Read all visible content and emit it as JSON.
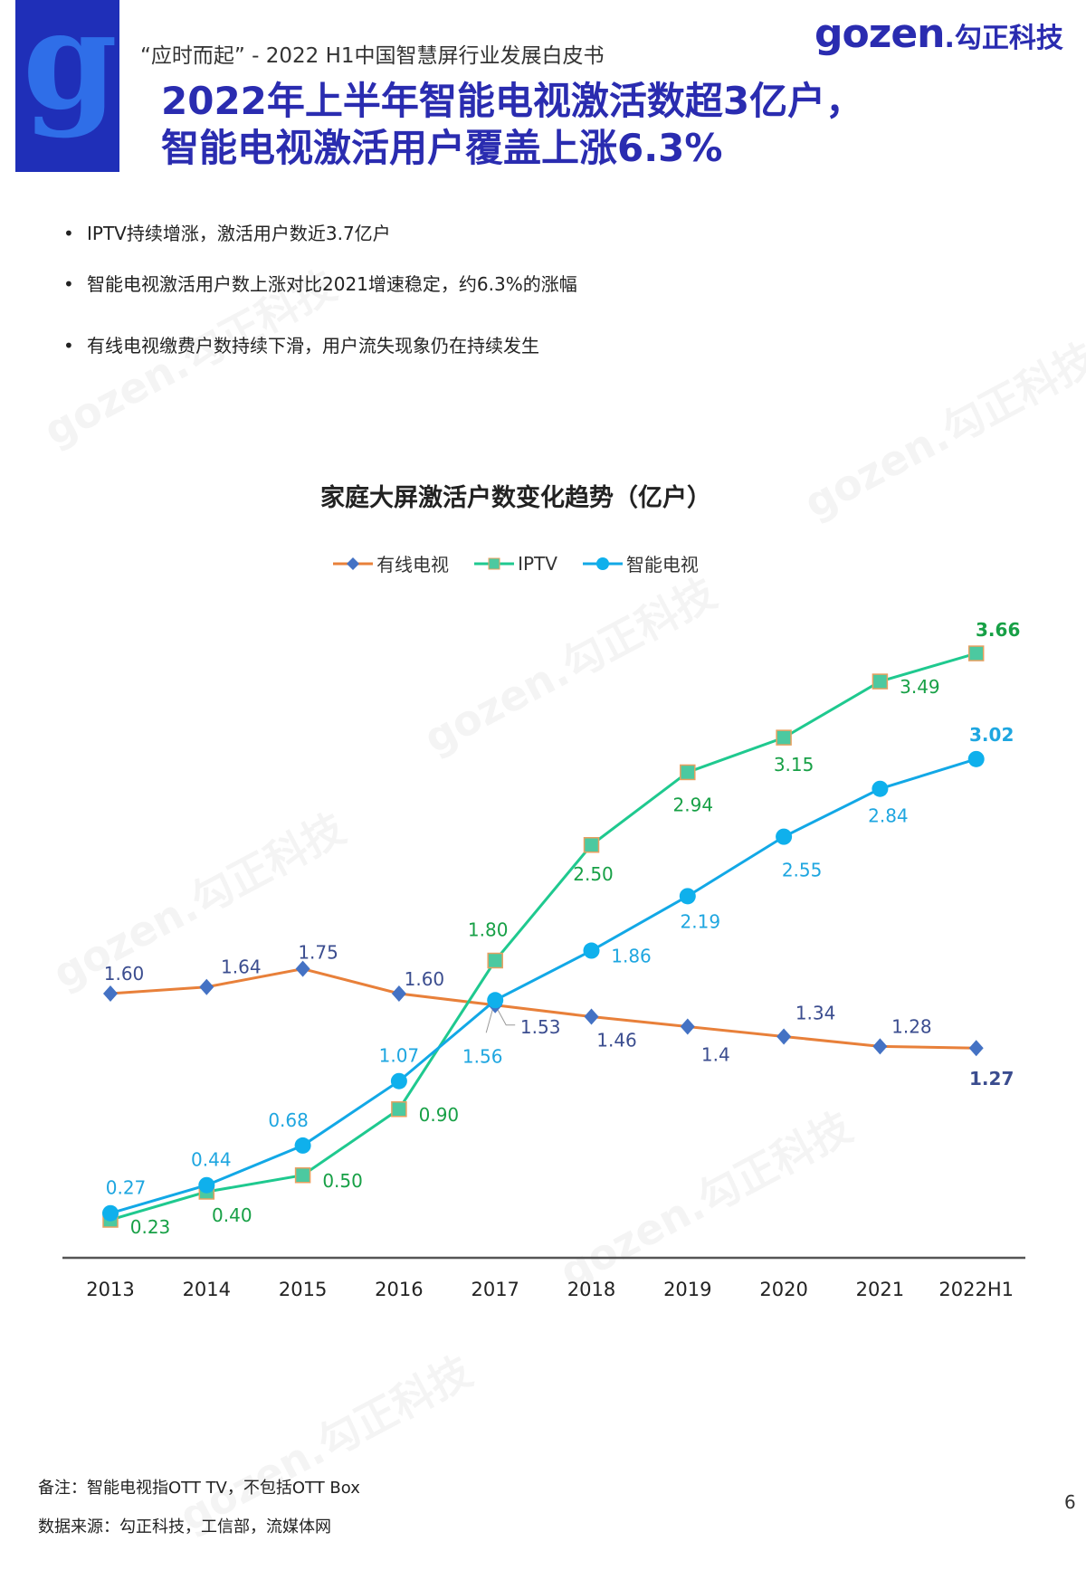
{
  "header": {
    "subtitle": "“应时而起” - 2022 H1中国智慧屏行业发展白皮书",
    "title_line1": "2022年上半年智能电视激活数超3亿户，",
    "title_line2": "智能电视激活用户覆盖上涨6.3%",
    "logo_text": "gozen",
    "logo_cn": ".勾正科技",
    "brand_color": "#2a2cb0"
  },
  "bullets": [
    "IPTV持续增涨，激活用户数近3.7亿户",
    "智能电视激活用户数上涨对比2021增速稳定，约6.3%的涨幅",
    "有线电视缴费户数持续下滑，用户流失现象仍在持续发生"
  ],
  "watermark": "gozen.勾正科技",
  "chart_data": {
    "type": "line",
    "title": "家庭大屏激活户数变化趋势（亿户）",
    "categories": [
      "2013",
      "2014",
      "2015",
      "2016",
      "2017",
      "2018",
      "2019",
      "2020",
      "2021",
      "2022H1"
    ],
    "ylim": [
      0,
      4
    ],
    "grid": false,
    "legend_placement": "top",
    "series": [
      {
        "name": "有线电视",
        "line_color": "#e8803a",
        "marker": "diamond",
        "marker_color": "#4472c4",
        "label_color": "#3b4d8f",
        "values": [
          1.6,
          1.64,
          1.75,
          1.6,
          1.53,
          1.46,
          1.4,
          1.34,
          1.28,
          1.27
        ],
        "labels": [
          "1.60",
          "1.64",
          "1.75",
          "1.60",
          "1.53",
          "1.46",
          "1.4",
          "1.34",
          "1.28",
          "1.27"
        ]
      },
      {
        "name": "IPTV",
        "line_color": "#1fc98f",
        "marker": "square",
        "marker_color": "#4cc9a0",
        "label_color": "#17a046",
        "values": [
          0.23,
          0.4,
          0.5,
          0.9,
          1.8,
          2.5,
          2.94,
          3.15,
          3.49,
          3.66
        ],
        "labels": [
          "0.23",
          "0.40",
          "0.50",
          "0.90",
          "1.80",
          "2.50",
          "2.94",
          "3.15",
          "3.49",
          "3.66"
        ]
      },
      {
        "name": "智能电视",
        "line_color": "#12a8e6",
        "marker": "circle",
        "marker_color": "#0fb0ec",
        "label_color": "#1ea6e0",
        "values": [
          0.27,
          0.44,
          0.68,
          1.07,
          1.56,
          1.86,
          2.19,
          2.55,
          2.84,
          3.02
        ],
        "labels": [
          "0.27",
          "0.44",
          "0.68",
          "1.07",
          "1.56",
          "1.86",
          "2.19",
          "2.55",
          "2.84",
          "3.02"
        ]
      }
    ]
  },
  "footer": {
    "note": "备注：智能电视指OTT TV，不包括OTT Box",
    "source": "数据来源：勾正科技，工信部，流媒体网",
    "page_number": "6"
  }
}
